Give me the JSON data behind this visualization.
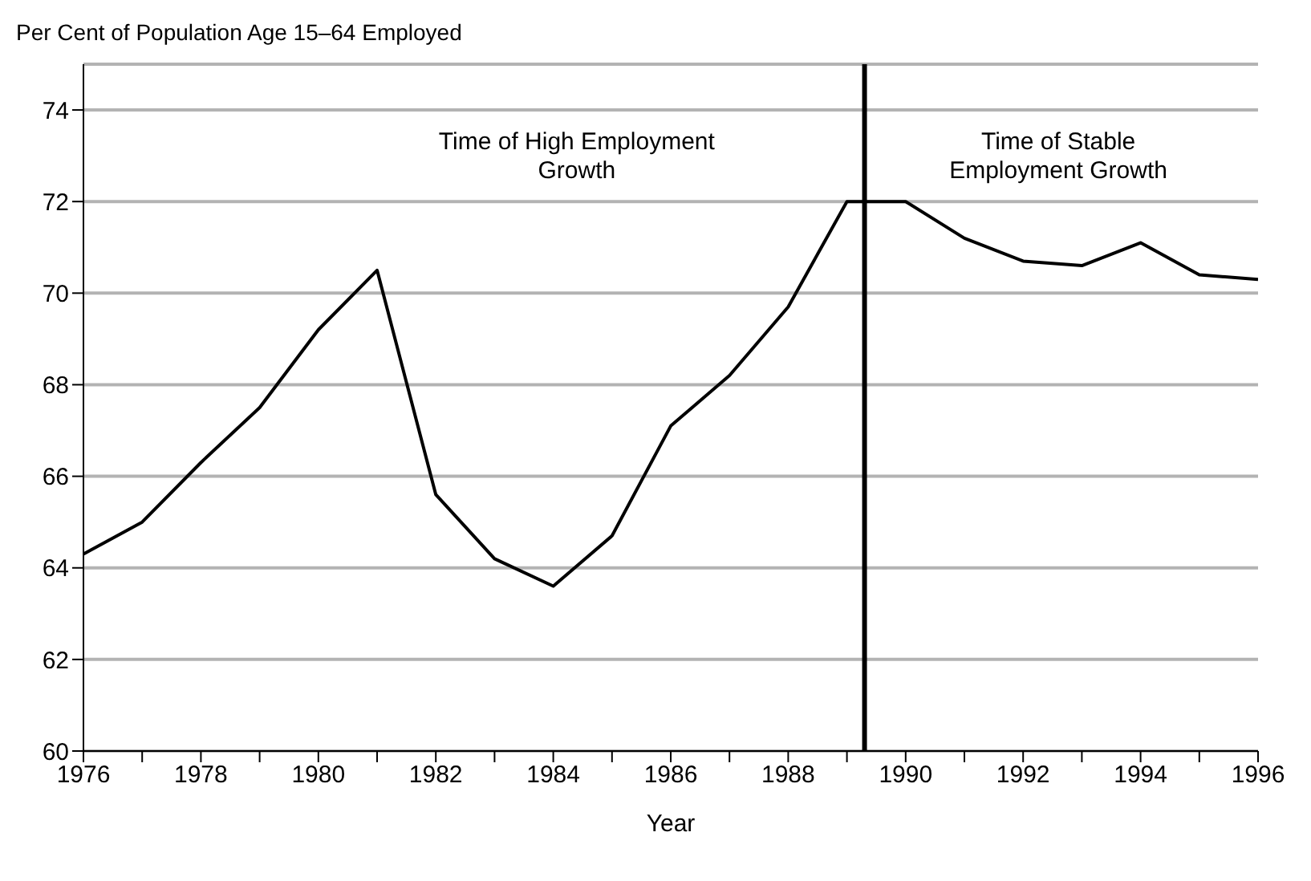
{
  "chart_data": {
    "type": "line",
    "ylabel": "Per Cent of Population Age 15–64 Employed",
    "xlabel": "Year",
    "x": [
      1976,
      1977,
      1978,
      1979,
      1980,
      1981,
      1982,
      1983,
      1984,
      1985,
      1986,
      1987,
      1988,
      1989,
      1990,
      1991,
      1992,
      1993,
      1994,
      1995,
      1996
    ],
    "series": [
      {
        "color": "#000000",
        "values": [
          64.3,
          65.0,
          66.3,
          67.5,
          69.2,
          70.5,
          65.6,
          64.2,
          63.6,
          64.7,
          67.1,
          68.2,
          69.7,
          72.0,
          72.0,
          71.2,
          70.7,
          70.6,
          71.1,
          70.4,
          70.3
        ]
      }
    ],
    "xlim": [
      1976,
      1996
    ],
    "xticks": [
      1976,
      {
        "value": 1977,
        "label": null
      },
      1978,
      {
        "value": 1979,
        "label": null
      },
      1980,
      {
        "value": 1981,
        "label": null
      },
      1982,
      {
        "value": 1983,
        "label": null
      },
      1984,
      {
        "value": 1985,
        "label": null
      },
      1986,
      {
        "value": 1987,
        "label": null
      },
      1988,
      {
        "value": 1989,
        "label": null
      },
      1990,
      {
        "value": 1991,
        "label": null
      },
      1992,
      {
        "value": 1993,
        "label": null
      },
      1994,
      {
        "value": 1995,
        "label": null
      },
      1996
    ],
    "ylim": [
      60,
      75
    ],
    "yticks": [
      60,
      62,
      64,
      66,
      68,
      70,
      72,
      74
    ],
    "grid": "y",
    "marker": "none",
    "line_style": "solid",
    "legend": false,
    "ref_lines": [
      {
        "axis": "x",
        "value": 1989.3,
        "color": "#000000",
        "line_style": "solid"
      }
    ],
    "annotations": [
      "Time of High Employment Growth",
      "Time of Stable Employment Growth"
    ]
  }
}
